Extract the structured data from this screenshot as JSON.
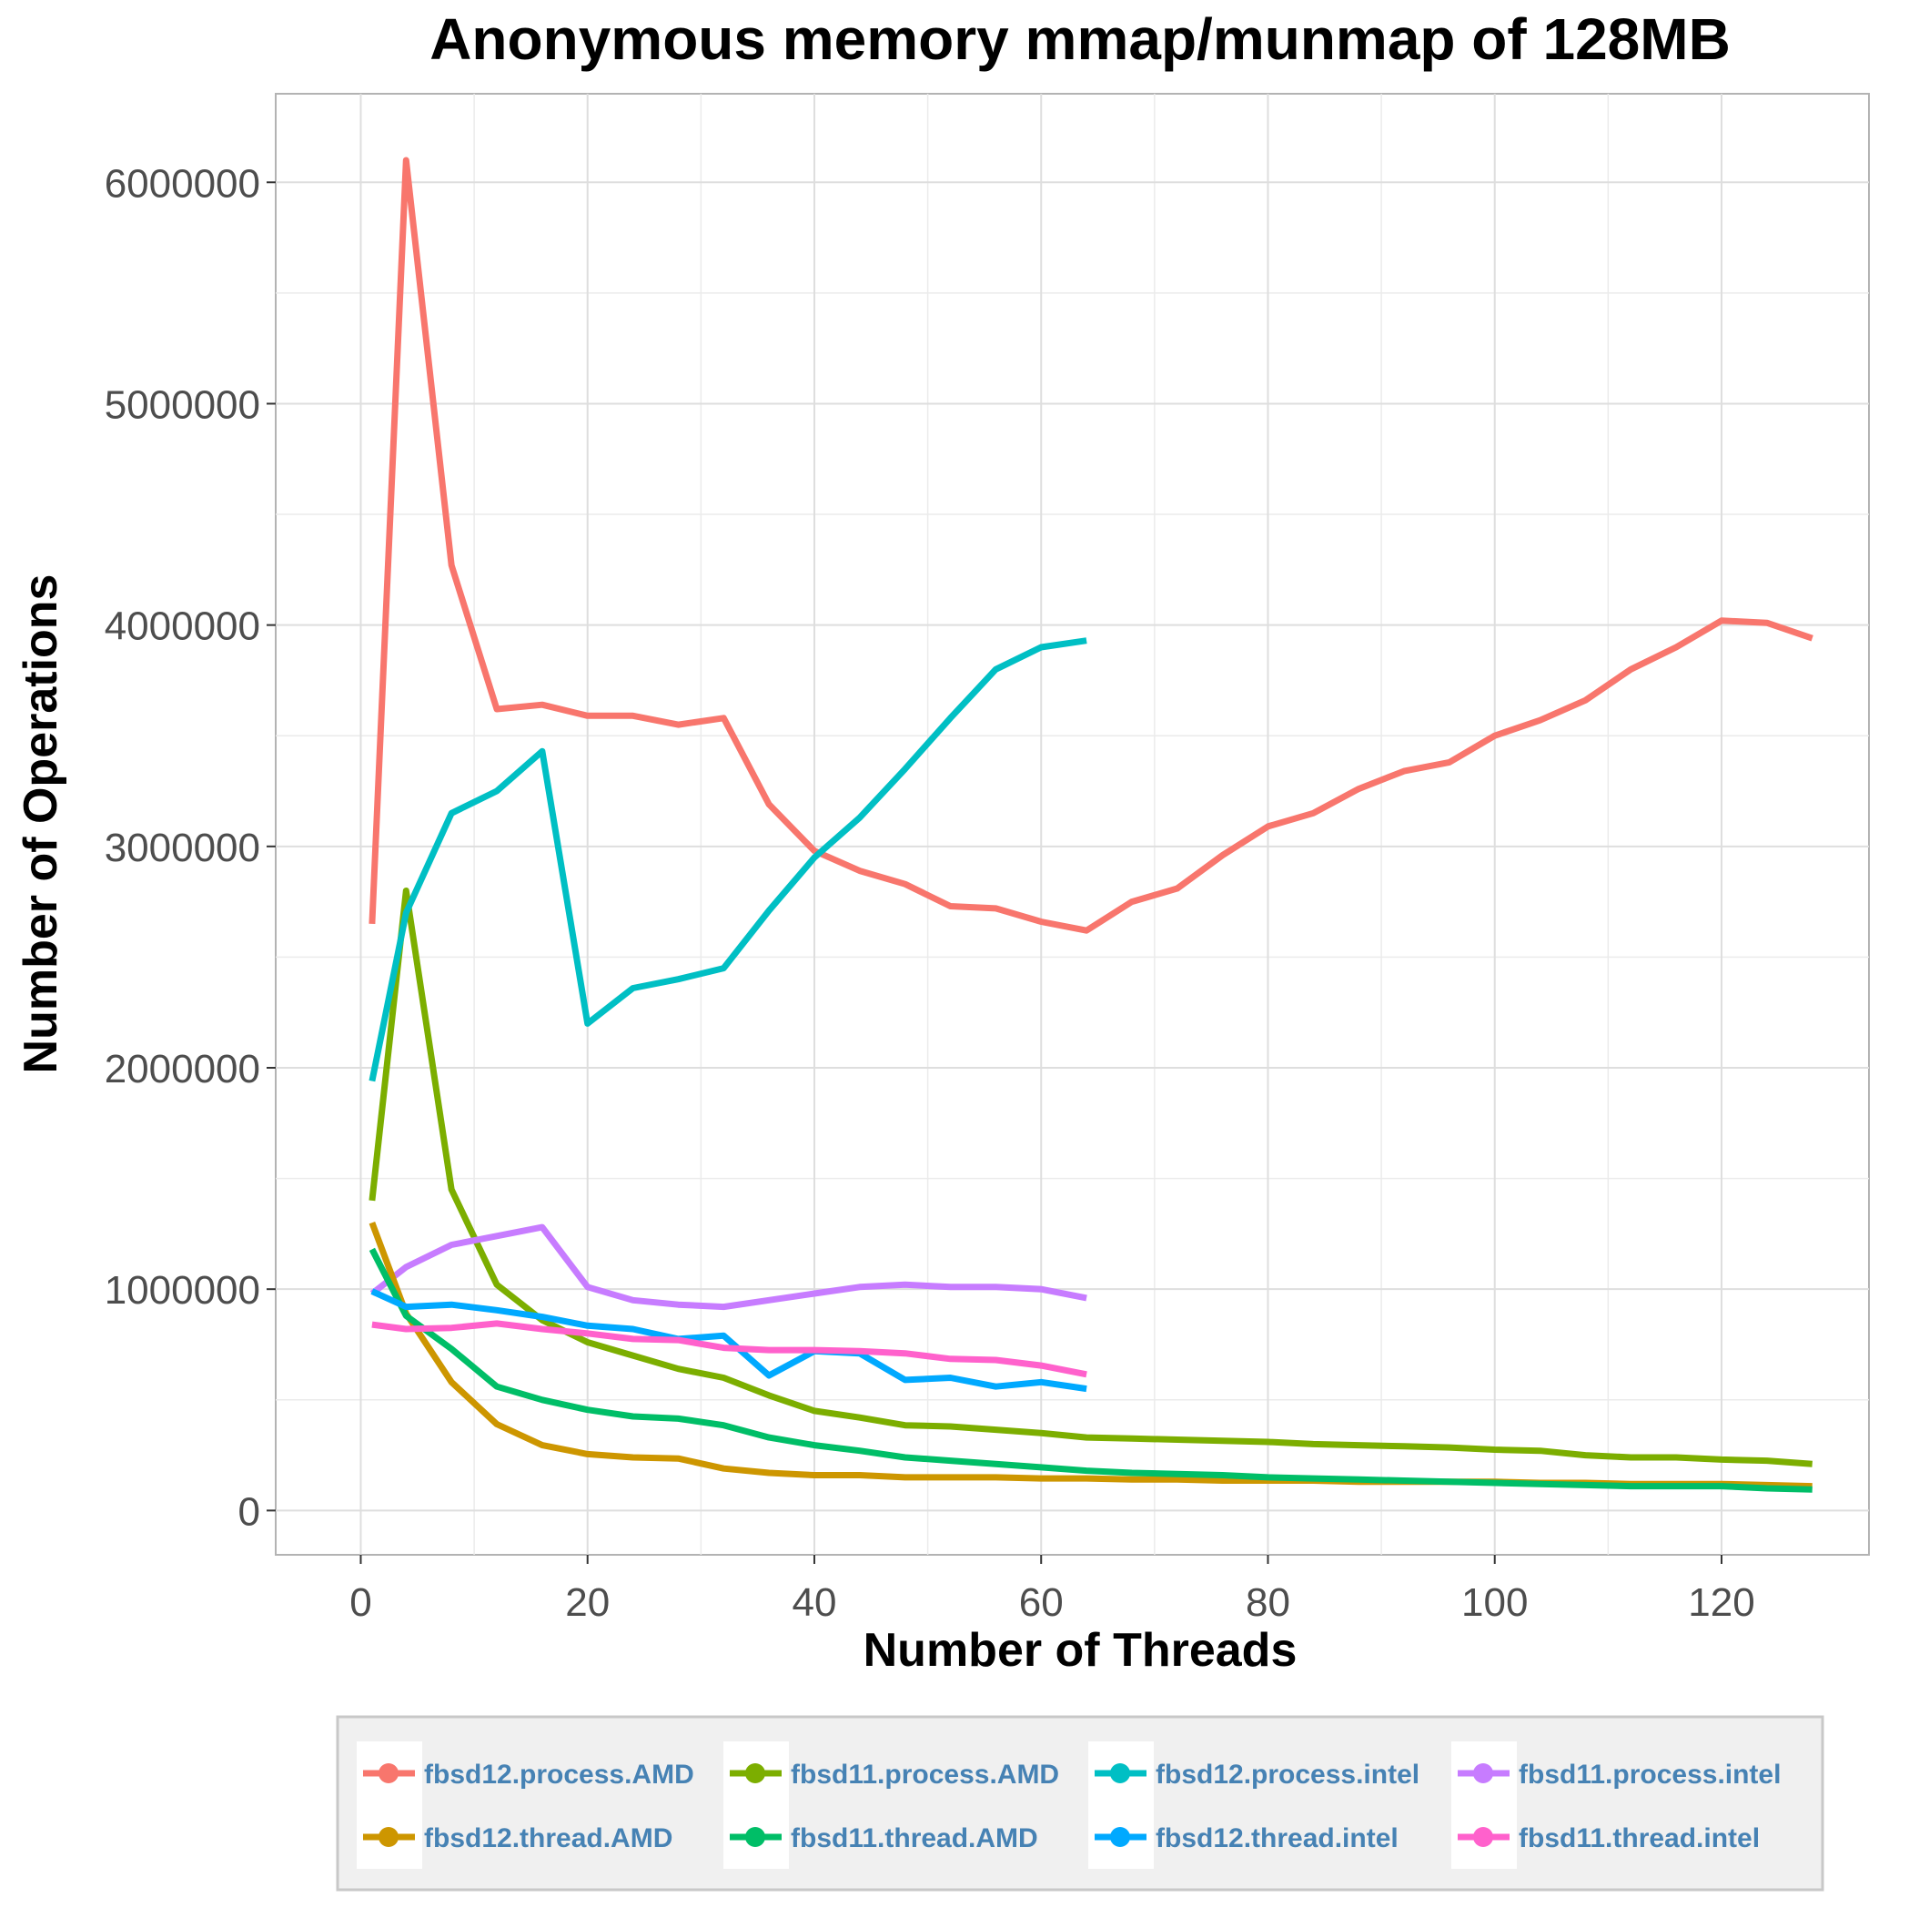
{
  "chart_data": {
    "type": "line",
    "title": "Anonymous memory mmap/munmap of 128MB",
    "xlabel": "Number of Threads",
    "ylabel": "Number of Operations",
    "xlim": [
      -7.5,
      133
    ],
    "ylim": [
      -200000,
      6400000
    ],
    "x_ticks": [
      0,
      20,
      40,
      60,
      80,
      100,
      120
    ],
    "x_tick_labels": [
      "0",
      "20",
      "40",
      "60",
      "80",
      "100",
      "120"
    ],
    "y_ticks": [
      0,
      1000000,
      2000000,
      3000000,
      4000000,
      5000000,
      6000000
    ],
    "y_tick_labels": [
      "0",
      "1000000",
      "2000000",
      "3000000",
      "4000000",
      "5000000",
      "6000000"
    ],
    "grid": true,
    "legend_position": "bottom",
    "series": [
      {
        "name": "fbsd12.process.AMD",
        "color": "#f8766d",
        "x": [
          1,
          4,
          8,
          12,
          16,
          20,
          24,
          28,
          32,
          36,
          40,
          44,
          48,
          52,
          56,
          60,
          64,
          68,
          72,
          76,
          80,
          84,
          88,
          92,
          96,
          100,
          104,
          108,
          112,
          116,
          120,
          124,
          128
        ],
        "y": [
          2650000,
          6100000,
          4270000,
          3620000,
          3640000,
          3590000,
          3590000,
          3550000,
          3580000,
          3190000,
          2980000,
          2890000,
          2830000,
          2730000,
          2720000,
          2660000,
          2620000,
          2750000,
          2810000,
          2960000,
          3090000,
          3150000,
          3260000,
          3340000,
          3380000,
          3500000,
          3570000,
          3660000,
          3800000,
          3900000,
          4020000,
          4010000,
          3940000
        ]
      },
      {
        "name": "fbsd11.process.AMD",
        "color": "#7cae00",
        "x": [
          1,
          4,
          8,
          12,
          16,
          20,
          24,
          28,
          32,
          36,
          40,
          44,
          48,
          52,
          56,
          60,
          64,
          68,
          72,
          76,
          80,
          84,
          88,
          92,
          96,
          100,
          104,
          108,
          112,
          116,
          120,
          124,
          128
        ],
        "y": [
          1400000,
          2800000,
          1450000,
          1020000,
          860000,
          760000,
          700000,
          640000,
          600000,
          520000,
          450000,
          420000,
          385000,
          380000,
          365000,
          350000,
          330000,
          325000,
          320000,
          315000,
          310000,
          300000,
          295000,
          290000,
          285000,
          275000,
          270000,
          250000,
          240000,
          240000,
          230000,
          225000,
          210000
        ]
      },
      {
        "name": "fbsd12.process.intel",
        "color": "#00bfc4",
        "x": [
          1,
          4,
          8,
          12,
          16,
          20,
          24,
          28,
          32,
          36,
          40,
          44,
          48,
          52,
          56,
          60,
          64
        ],
        "y": [
          1940000,
          2700000,
          3150000,
          3250000,
          3430000,
          2200000,
          2360000,
          2400000,
          2450000,
          2710000,
          2950000,
          3130000,
          3350000,
          3580000,
          3800000,
          3900000,
          3930000
        ]
      },
      {
        "name": "fbsd11.process.intel",
        "color": "#c77cff",
        "x": [
          1,
          4,
          8,
          12,
          16,
          20,
          24,
          28,
          32,
          36,
          40,
          44,
          48,
          52,
          56,
          60,
          64
        ],
        "y": [
          980000,
          1100000,
          1200000,
          1240000,
          1280000,
          1010000,
          950000,
          930000,
          920000,
          950000,
          980000,
          1010000,
          1020000,
          1010000,
          1010000,
          1000000,
          960000
        ]
      },
      {
        "name": "fbsd12.thread.AMD",
        "color": "#cd9600",
        "x": [
          1,
          4,
          8,
          12,
          16,
          20,
          24,
          28,
          32,
          36,
          40,
          44,
          48,
          52,
          56,
          60,
          64,
          68,
          72,
          76,
          80,
          84,
          88,
          92,
          96,
          100,
          104,
          108,
          112,
          116,
          120,
          124,
          128
        ],
        "y": [
          1300000,
          890000,
          580000,
          390000,
          295000,
          255000,
          240000,
          235000,
          190000,
          170000,
          160000,
          160000,
          150000,
          150000,
          150000,
          145000,
          145000,
          140000,
          140000,
          135000,
          135000,
          135000,
          130000,
          130000,
          130000,
          130000,
          125000,
          125000,
          120000,
          120000,
          120000,
          115000,
          110000
        ]
      },
      {
        "name": "fbsd11.thread.AMD",
        "color": "#00be67",
        "x": [
          1,
          4,
          8,
          12,
          16,
          20,
          24,
          28,
          32,
          36,
          40,
          44,
          48,
          52,
          56,
          60,
          64,
          68,
          72,
          76,
          80,
          84,
          88,
          92,
          96,
          100,
          104,
          108,
          112,
          116,
          120,
          124,
          128
        ],
        "y": [
          1180000,
          880000,
          730000,
          560000,
          500000,
          455000,
          425000,
          415000,
          385000,
          330000,
          295000,
          270000,
          240000,
          225000,
          210000,
          195000,
          180000,
          170000,
          165000,
          160000,
          150000,
          145000,
          140000,
          135000,
          130000,
          125000,
          120000,
          115000,
          110000,
          110000,
          110000,
          100000,
          95000
        ]
      },
      {
        "name": "fbsd12.thread.intel",
        "color": "#00a9ff",
        "x": [
          1,
          4,
          8,
          12,
          16,
          20,
          24,
          28,
          32,
          36,
          40,
          44,
          48,
          52,
          56,
          60,
          64
        ],
        "y": [
          990000,
          920000,
          930000,
          905000,
          875000,
          835000,
          820000,
          775000,
          790000,
          610000,
          720000,
          710000,
          590000,
          600000,
          560000,
          580000,
          550000
        ]
      },
      {
        "name": "fbsd11.thread.intel",
        "color": "#ff61cc",
        "x": [
          1,
          4,
          8,
          12,
          16,
          20,
          24,
          28,
          32,
          36,
          40,
          44,
          48,
          52,
          56,
          60,
          64
        ],
        "y": [
          840000,
          820000,
          825000,
          845000,
          820000,
          800000,
          775000,
          770000,
          735000,
          725000,
          725000,
          720000,
          710000,
          685000,
          680000,
          655000,
          615000
        ]
      }
    ]
  }
}
